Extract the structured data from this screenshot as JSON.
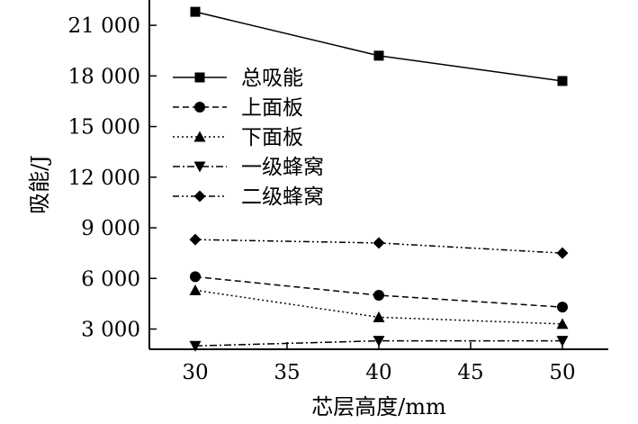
{
  "chart_data": {
    "type": "line",
    "title": "",
    "xlabel": "芯层高度/mm",
    "ylabel": "吸能/J",
    "x": [
      30,
      40,
      50
    ],
    "xticks": [
      30,
      35,
      40,
      45,
      50
    ],
    "xlim": [
      27.5,
      52.5
    ],
    "yticks": [
      3000,
      6000,
      9000,
      12000,
      15000,
      18000,
      21000
    ],
    "ytick_labels": [
      "3 000",
      "6 000",
      "9 000",
      "12 000",
      "15 000",
      "18 000",
      "21 000"
    ],
    "ylim": [
      1800,
      22500
    ],
    "grid": false,
    "legend_position": "upper-left",
    "series": [
      {
        "name": "总吸能",
        "values": [
          21800,
          19200,
          17700
        ],
        "marker": "square",
        "dash": "solid"
      },
      {
        "name": "上面板",
        "values": [
          6100,
          5000,
          4300
        ],
        "marker": "circle",
        "dash": "dashed"
      },
      {
        "name": "下面板",
        "values": [
          5300,
          3700,
          3300
        ],
        "marker": "triangle-up",
        "dash": "dotted"
      },
      {
        "name": "一级蜂窝",
        "values": [
          2000,
          2300,
          2300
        ],
        "marker": "triangle-down",
        "dash": "dash-dot"
      },
      {
        "name": "二级蜂窝",
        "values": [
          8300,
          8100,
          7500
        ],
        "marker": "diamond",
        "dash": "dash-dot-dot"
      }
    ]
  }
}
